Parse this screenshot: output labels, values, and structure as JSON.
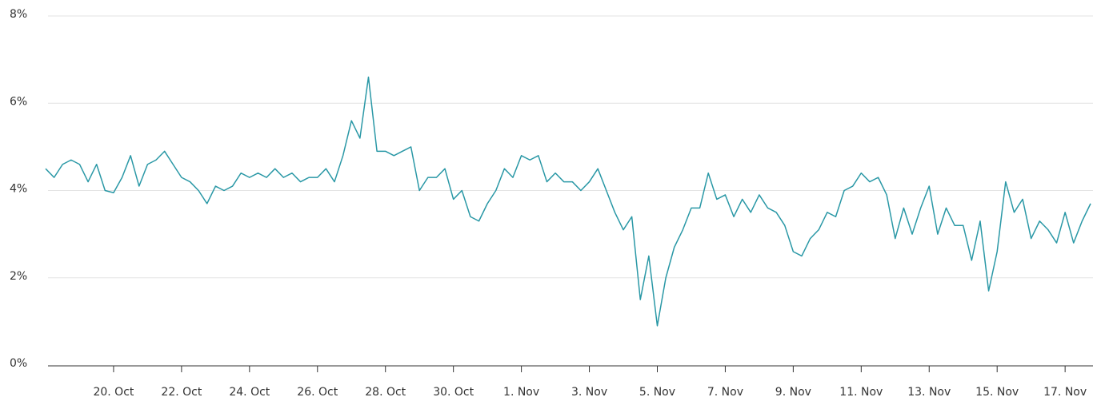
{
  "chart_data": {
    "type": "line",
    "categories": [
      null,
      null,
      null,
      null,
      null,
      null,
      null,
      null,
      "20. Oct",
      null,
      null,
      null,
      null,
      null,
      null,
      null,
      "22. Oct",
      null,
      null,
      null,
      null,
      null,
      null,
      null,
      "24. Oct",
      null,
      null,
      null,
      null,
      null,
      null,
      null,
      "26. Oct",
      null,
      null,
      null,
      null,
      null,
      null,
      null,
      "28. Oct",
      null,
      null,
      null,
      null,
      null,
      null,
      null,
      "30. Oct",
      null,
      null,
      null,
      null,
      null,
      null,
      null,
      "1. Nov",
      null,
      null,
      null,
      null,
      null,
      null,
      null,
      "3. Nov",
      null,
      null,
      null,
      null,
      null,
      null,
      null,
      "5. Nov",
      null,
      null,
      null,
      null,
      null,
      null,
      null,
      "7. Nov",
      null,
      null,
      null,
      null,
      null,
      null,
      null,
      "9. Nov",
      null,
      null,
      null,
      null,
      null,
      null,
      null,
      "11. Nov",
      null,
      null,
      null,
      null,
      null,
      null,
      null,
      "13. Nov",
      null,
      null,
      null,
      null,
      null,
      null,
      null,
      "15. Nov",
      null,
      null,
      null,
      null,
      null,
      null,
      null,
      "17. Nov",
      null,
      null,
      null
    ],
    "values": [
      4.5,
      4.3,
      4.6,
      4.7,
      4.6,
      4.2,
      4.6,
      4.0,
      3.95,
      4.3,
      4.8,
      4.1,
      4.6,
      4.7,
      4.9,
      4.6,
      4.3,
      4.2,
      4.0,
      3.7,
      4.1,
      4.0,
      4.1,
      4.4,
      4.3,
      4.4,
      4.3,
      4.5,
      4.3,
      4.4,
      4.2,
      4.3,
      4.3,
      4.5,
      4.2,
      4.8,
      5.6,
      5.2,
      6.6,
      4.9,
      4.9,
      4.8,
      4.9,
      5.0,
      4.0,
      4.3,
      4.3,
      4.5,
      3.8,
      4.0,
      3.4,
      3.3,
      3.7,
      4.0,
      4.5,
      4.3,
      4.8,
      4.7,
      4.8,
      4.2,
      4.4,
      4.2,
      4.2,
      4.0,
      4.2,
      4.5,
      4.0,
      3.5,
      3.1,
      3.4,
      1.5,
      2.5,
      0.9,
      2.0,
      2.7,
      3.1,
      3.6,
      3.6,
      4.4,
      3.8,
      3.9,
      3.4,
      3.8,
      3.5,
      3.9,
      3.6,
      3.5,
      3.2,
      2.6,
      2.5,
      2.9,
      3.1,
      3.5,
      3.4,
      4.0,
      4.1,
      4.4,
      4.2,
      4.3,
      3.9,
      2.9,
      3.6,
      3.0,
      3.6,
      4.1,
      3.0,
      3.6,
      3.2,
      3.2,
      2.4,
      3.3,
      1.7,
      2.6,
      4.2,
      3.5,
      3.8,
      2.9,
      3.3,
      3.1,
      2.8,
      3.5,
      2.8,
      3.3,
      3.7
    ],
    "color": "#2a98a6",
    "ylim": [
      0,
      8
    ],
    "yticks": [
      {
        "value": 0,
        "label": "0%"
      },
      {
        "value": 2,
        "label": "2%"
      },
      {
        "value": 4,
        "label": "4%"
      },
      {
        "value": 6,
        "label": "6%"
      },
      {
        "value": 8,
        "label": "8%"
      }
    ],
    "grid": true
  }
}
